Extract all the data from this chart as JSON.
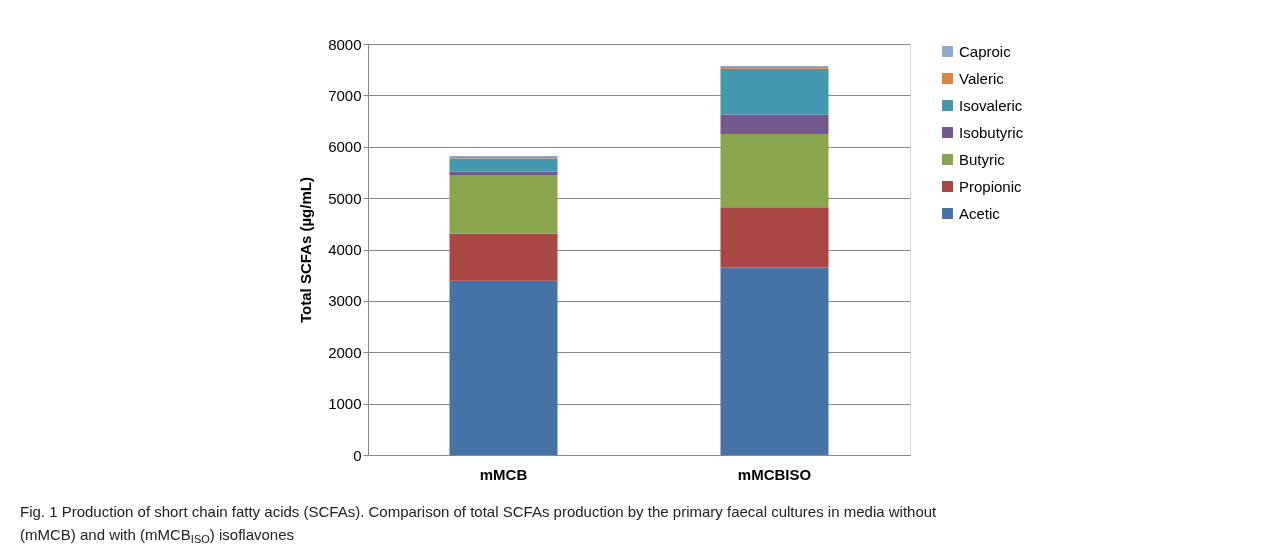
{
  "chart_data": {
    "type": "bar",
    "stacked": true,
    "ylabel": "Total SCFAs (µg/mL)",
    "categories": [
      "mMCB",
      "mMCBISO"
    ],
    "series": [
      {
        "name": "Acetic",
        "color": "#4572a7",
        "values": [
          3390,
          3650
        ]
      },
      {
        "name": "Propionic",
        "color": "#aa4643",
        "values": [
          920,
          1170
        ]
      },
      {
        "name": "Butyric",
        "color": "#89a54e",
        "values": [
          1140,
          1430
        ]
      },
      {
        "name": "Isobutyric",
        "color": "#71588f",
        "values": [
          70,
          380
        ]
      },
      {
        "name": "Isovaleric",
        "color": "#4198af",
        "values": [
          250,
          890
        ]
      },
      {
        "name": "Valeric",
        "color": "#db843d",
        "values": [
          30,
          30
        ]
      },
      {
        "name": "Caproic",
        "color": "#93a9cf",
        "values": [
          20,
          20
        ]
      }
    ],
    "ylim": [
      0,
      8000
    ],
    "yticks": [
      0,
      {
        "value": 1000,
        "label": "1000"
      },
      {
        "value": 2000,
        "label": "2000"
      },
      {
        "value": 3000,
        "label": "3000"
      },
      {
        "value": 4000,
        "label": "4000"
      },
      {
        "value": 5000,
        "label": "5000"
      },
      {
        "value": 6000,
        "label": "6000"
      },
      {
        "value": 7000,
        "label": "7000"
      },
      {
        "value": 8000,
        "label": "8000"
      }
    ],
    "grid": "y",
    "legend": "right",
    "annotations": [
      "Fig. 1 Production of short chain fatty acids (SCFAs). Comparison of total SCFAs production by the primary faecal cultures in media without (mMCB) and with (mMCB$_{ISO}$) isoflavones"
    ]
  }
}
